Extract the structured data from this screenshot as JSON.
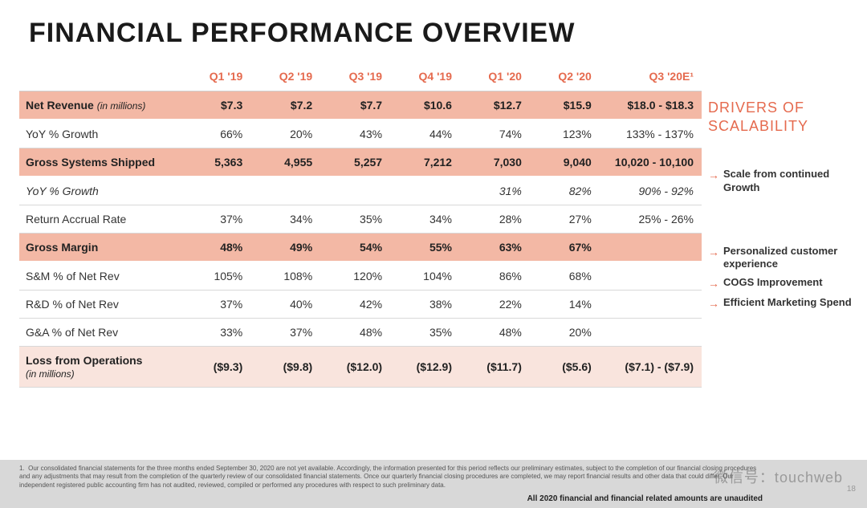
{
  "title": "FINANCIAL PERFORMANCE OVERVIEW",
  "columns": [
    "",
    "Q1 '19",
    "Q2 '19",
    "Q3 '19",
    "Q4 '19",
    "Q1 '20",
    "Q2 '20",
    "Q3 '20E¹"
  ],
  "rows": {
    "net_rev": {
      "label": "Net Revenue",
      "sub": "(in millions)",
      "v": [
        "$7.3",
        "$7.2",
        "$7.7",
        "$10.6",
        "$12.7",
        "$15.9",
        "$18.0 - $18.3"
      ]
    },
    "yoy1": {
      "label": "YoY % Growth",
      "v": [
        "66%",
        "20%",
        "43%",
        "44%",
        "74%",
        "123%",
        "133% - 137%"
      ]
    },
    "shipped": {
      "label": "Gross Systems Shipped",
      "v": [
        "5,363",
        "4,955",
        "5,257",
        "7,212",
        "7,030",
        "9,040",
        "10,020 - 10,100"
      ]
    },
    "yoy2": {
      "label": "YoY % Growth",
      "v": [
        "",
        "",
        "",
        "",
        "31%",
        "82%",
        "90% - 92%"
      ]
    },
    "accrual": {
      "label": "Return Accrual Rate",
      "v": [
        "37%",
        "34%",
        "35%",
        "34%",
        "28%",
        "27%",
        "25% - 26%"
      ]
    },
    "margin": {
      "label": "Gross Margin",
      "v": [
        "48%",
        "49%",
        "54%",
        "55%",
        "63%",
        "67%",
        ""
      ]
    },
    "sm": {
      "label": "S&M % of Net Rev",
      "v": [
        "105%",
        "108%",
        "120%",
        "104%",
        "86%",
        "68%",
        ""
      ]
    },
    "rd": {
      "label": "R&D % of Net Rev",
      "v": [
        "37%",
        "40%",
        "42%",
        "38%",
        "22%",
        "14%",
        ""
      ]
    },
    "ga": {
      "label": "G&A % of Net Rev",
      "v": [
        "33%",
        "37%",
        "48%",
        "35%",
        "48%",
        "20%",
        ""
      ]
    },
    "loss": {
      "label": "Loss from Operations",
      "sub": "(in millions)",
      "v": [
        "($9.3)",
        "($9.8)",
        "($12.0)",
        "($12.9)",
        "($11.7)",
        "($5.6)",
        "($7.1) - ($7.9)"
      ]
    }
  },
  "sidebar": {
    "title_l1": "DRIVERS OF",
    "title_l2": "SCALABILITY",
    "drivers": [
      "Scale from continued Growth",
      "Personalized customer experience",
      "COGS Improvement",
      "Efficient Marketing Spend"
    ]
  },
  "footnote": {
    "num": "1.",
    "text": "Our consolidated financial statements for the three months ended September 30, 2020 are not yet available. Accordingly, the information presented for this period reflects our preliminary estimates, subject to the completion of our financial closing procedures and any adjustments that may result from the completion of the quarterly review of our consolidated financial statements. Once our quarterly financial closing procedures are completed, we may report financial results and other data that could differ. Our independent registered public accounting firm has not audited, reviewed, compiled or performed any procedures with respect to such preliminary data.",
    "unaudited": "All 2020 financial and financial related amounts are unaudited"
  },
  "pagenum": "18",
  "watermark": "微信号：touchweb",
  "colors": {
    "accent": "#e56a4e",
    "highlight_row": "#f3b8a5",
    "highlight_light": "#f9e4dd",
    "border": "#d8d8d8",
    "footer_bg": "#d8d8d8"
  }
}
